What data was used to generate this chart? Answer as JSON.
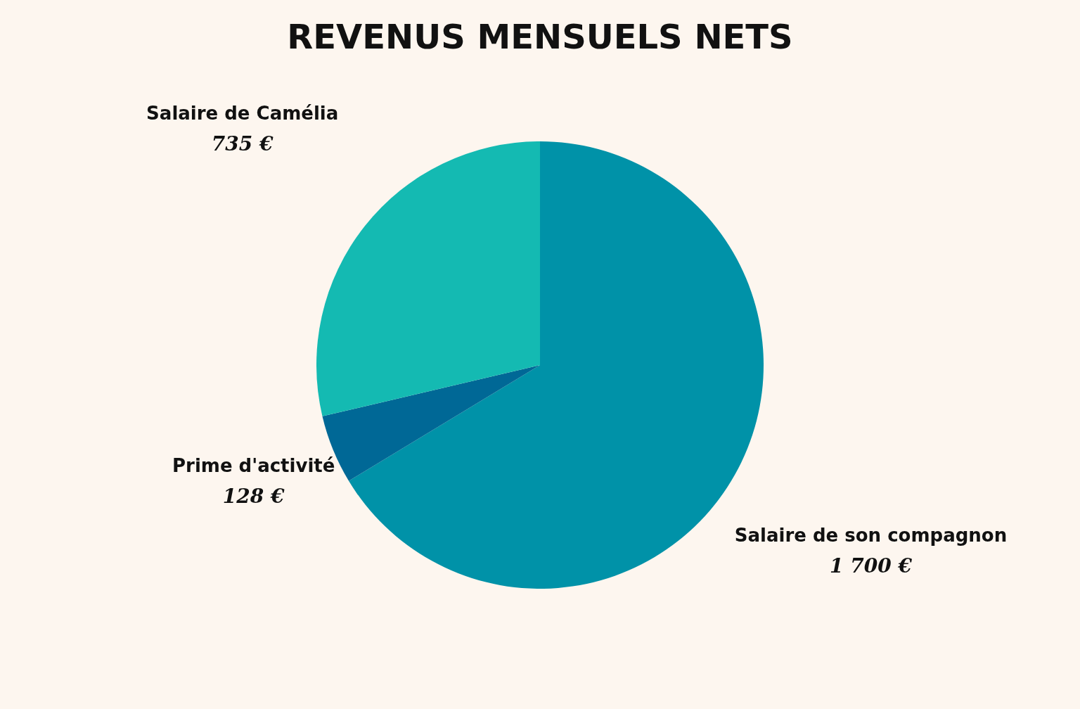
{
  "chart_data": {
    "type": "pie",
    "title": "REVENUS MENSUELS NETS",
    "categories": [
      "Salaire de son compagnon",
      "Prime d'activité",
      "Salaire de Camélia"
    ],
    "values": [
      1700,
      128,
      735
    ],
    "colors": [
      "#0092a8",
      "#006896",
      "#14bab2"
    ],
    "value_labels": [
      "1 700 €",
      "128 €",
      "735 €"
    ],
    "legend": false
  }
}
